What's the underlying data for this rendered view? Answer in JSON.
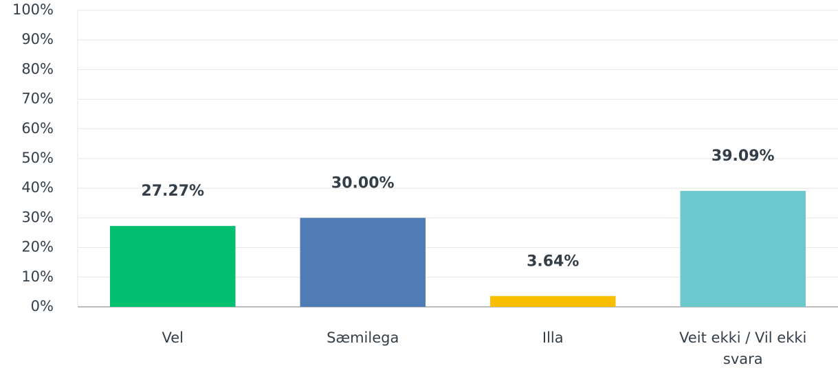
{
  "chart_data": {
    "type": "bar",
    "categories": [
      "Vel",
      "Sæmilega",
      "Illa",
      "Veit ekki / Vil ekki svara"
    ],
    "values": [
      27.27,
      30.0,
      3.64,
      39.09
    ],
    "value_labels": [
      "27.27%",
      "30.00%",
      "3.64%",
      "39.09%"
    ],
    "colors": [
      "#00bf6f",
      "#507cb6",
      "#f9be00",
      "#6bc8cd"
    ],
    "ylim": [
      0,
      100
    ],
    "yticks": [
      {
        "value": 0,
        "label": "0%"
      },
      {
        "value": 10,
        "label": "10%"
      },
      {
        "value": 20,
        "label": "20%"
      },
      {
        "value": 30,
        "label": "30%"
      },
      {
        "value": 40,
        "label": "40%"
      },
      {
        "value": 50,
        "label": "50%"
      },
      {
        "value": 60,
        "label": "60%"
      },
      {
        "value": 70,
        "label": "70%"
      },
      {
        "value": 80,
        "label": "80%"
      },
      {
        "value": 90,
        "label": "90%"
      },
      {
        "value": 100,
        "label": "100%"
      }
    ],
    "grid": true
  }
}
